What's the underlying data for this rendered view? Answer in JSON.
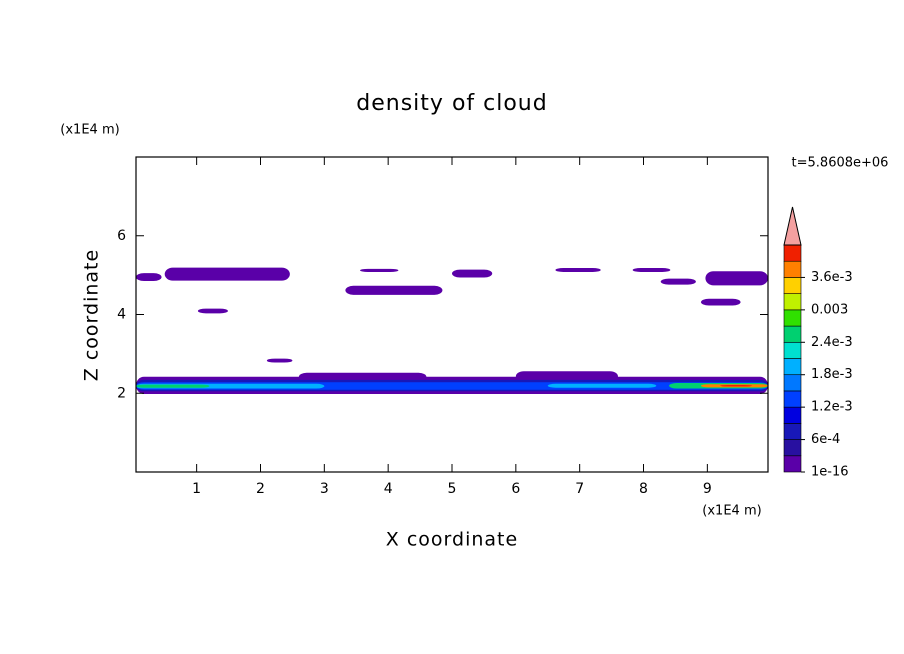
{
  "chart_data": {
    "type": "contour",
    "title": "density of cloud",
    "x_label": "X coordinate",
    "y_label": "Z coordinate",
    "x_unit": "(x1E4 m)",
    "y_unit": "(x1E4 m)",
    "annotation": "t=5.8608e+06",
    "xlim": [
      0.05,
      9.95
    ],
    "ylim": [
      0,
      8
    ],
    "xticks": [
      1,
      2,
      3,
      4,
      5,
      6,
      7,
      8,
      9
    ],
    "yticks": [
      2,
      4,
      6
    ],
    "colorbar": {
      "levels": [
        1e-16,
        0.0003,
        0.0006,
        0.0009,
        0.0012,
        0.0015,
        0.0018,
        0.0021,
        0.0024,
        0.0027,
        0.003,
        0.0033,
        0.0036,
        0.0039,
        0.0042
      ],
      "colors": [
        "#5a00a8",
        "#2810a0",
        "#1818b8",
        "#0000e0",
        "#0040ff",
        "#0078ff",
        "#00b0ff",
        "#00e0d0",
        "#00d070",
        "#30e000",
        "#c0f000",
        "#ffd000",
        "#ff8000",
        "#f02000"
      ],
      "extend_color": "#f4a0a0",
      "ticks": [
        1e-16,
        {
          "value": 0.0006,
          "label": "6e-4"
        },
        {
          "value": 0.0012,
          "label": "1.2e-3"
        },
        {
          "value": 0.0018,
          "label": "1.8e-3"
        },
        {
          "value": 0.0024,
          "label": "2.4e-3"
        },
        0.003,
        {
          "value": 0.0036,
          "label": "3.6e-3"
        }
      ]
    },
    "regions": [
      {
        "x": [
          0.05,
          0.45
        ],
        "z": [
          4.85,
          5.05
        ],
        "value": 0.0001
      },
      {
        "x": [
          0.5,
          2.46
        ],
        "z": [
          4.86,
          5.19
        ],
        "value": 0.0001
      },
      {
        "x": [
          1.02,
          1.49
        ],
        "z": [
          4.03,
          4.15
        ],
        "value": 0.0001
      },
      {
        "x": [
          2.1,
          2.5
        ],
        "z": [
          2.78,
          2.88
        ],
        "value": 0.0001
      },
      {
        "x": [
          3.33,
          4.85
        ],
        "z": [
          4.5,
          4.73
        ],
        "value": 0.0001
      },
      {
        "x": [
          3.56,
          4.16
        ],
        "z": [
          5.08,
          5.16
        ],
        "value": 0.0001
      },
      {
        "x": [
          5.0,
          5.63
        ],
        "z": [
          4.94,
          5.14
        ],
        "value": 0.0001
      },
      {
        "x": [
          6.62,
          7.33
        ],
        "z": [
          5.08,
          5.18
        ],
        "value": 0.0001
      },
      {
        "x": [
          7.83,
          8.42
        ],
        "z": [
          5.08,
          5.18
        ],
        "value": 0.0001
      },
      {
        "x": [
          8.27,
          8.82
        ],
        "z": [
          4.76,
          4.91
        ],
        "value": 0.0001
      },
      {
        "x": [
          8.9,
          9.52
        ],
        "z": [
          4.23,
          4.4
        ],
        "value": 0.0001
      },
      {
        "x": [
          8.97,
          9.95
        ],
        "z": [
          4.74,
          5.1
        ],
        "value": 0.0001
      },
      {
        "x": [
          0.05,
          9.95
        ],
        "z": [
          1.98,
          2.42
        ],
        "value": 0.0001
      },
      {
        "x": [
          2.6,
          4.6
        ],
        "z": [
          2.3,
          2.52
        ],
        "value": 0.0001
      },
      {
        "x": [
          6.0,
          7.6
        ],
        "z": [
          2.3,
          2.56
        ],
        "value": 0.0001
      },
      {
        "x": [
          0.05,
          9.95
        ],
        "z": [
          2.05,
          2.34
        ],
        "value": 0.0007
      },
      {
        "x": [
          0.05,
          9.95
        ],
        "z": [
          2.09,
          2.28
        ],
        "value": 0.0013
      },
      {
        "x": [
          0.05,
          3.0
        ],
        "z": [
          2.12,
          2.24
        ],
        "value": 0.0019
      },
      {
        "x": [
          6.5,
          8.2
        ],
        "z": [
          2.14,
          2.24
        ],
        "value": 0.0019
      },
      {
        "x": [
          0.05,
          1.2
        ],
        "z": [
          2.14,
          2.22
        ],
        "value": 0.0025
      },
      {
        "x": [
          8.4,
          9.95
        ],
        "z": [
          2.12,
          2.26
        ],
        "value": 0.0025
      },
      {
        "x": [
          8.9,
          9.95
        ],
        "z": [
          2.15,
          2.23
        ],
        "value": 0.0037
      },
      {
        "x": [
          9.2,
          9.7
        ],
        "z": [
          2.17,
          2.21
        ],
        "value": 0.0041
      }
    ]
  }
}
